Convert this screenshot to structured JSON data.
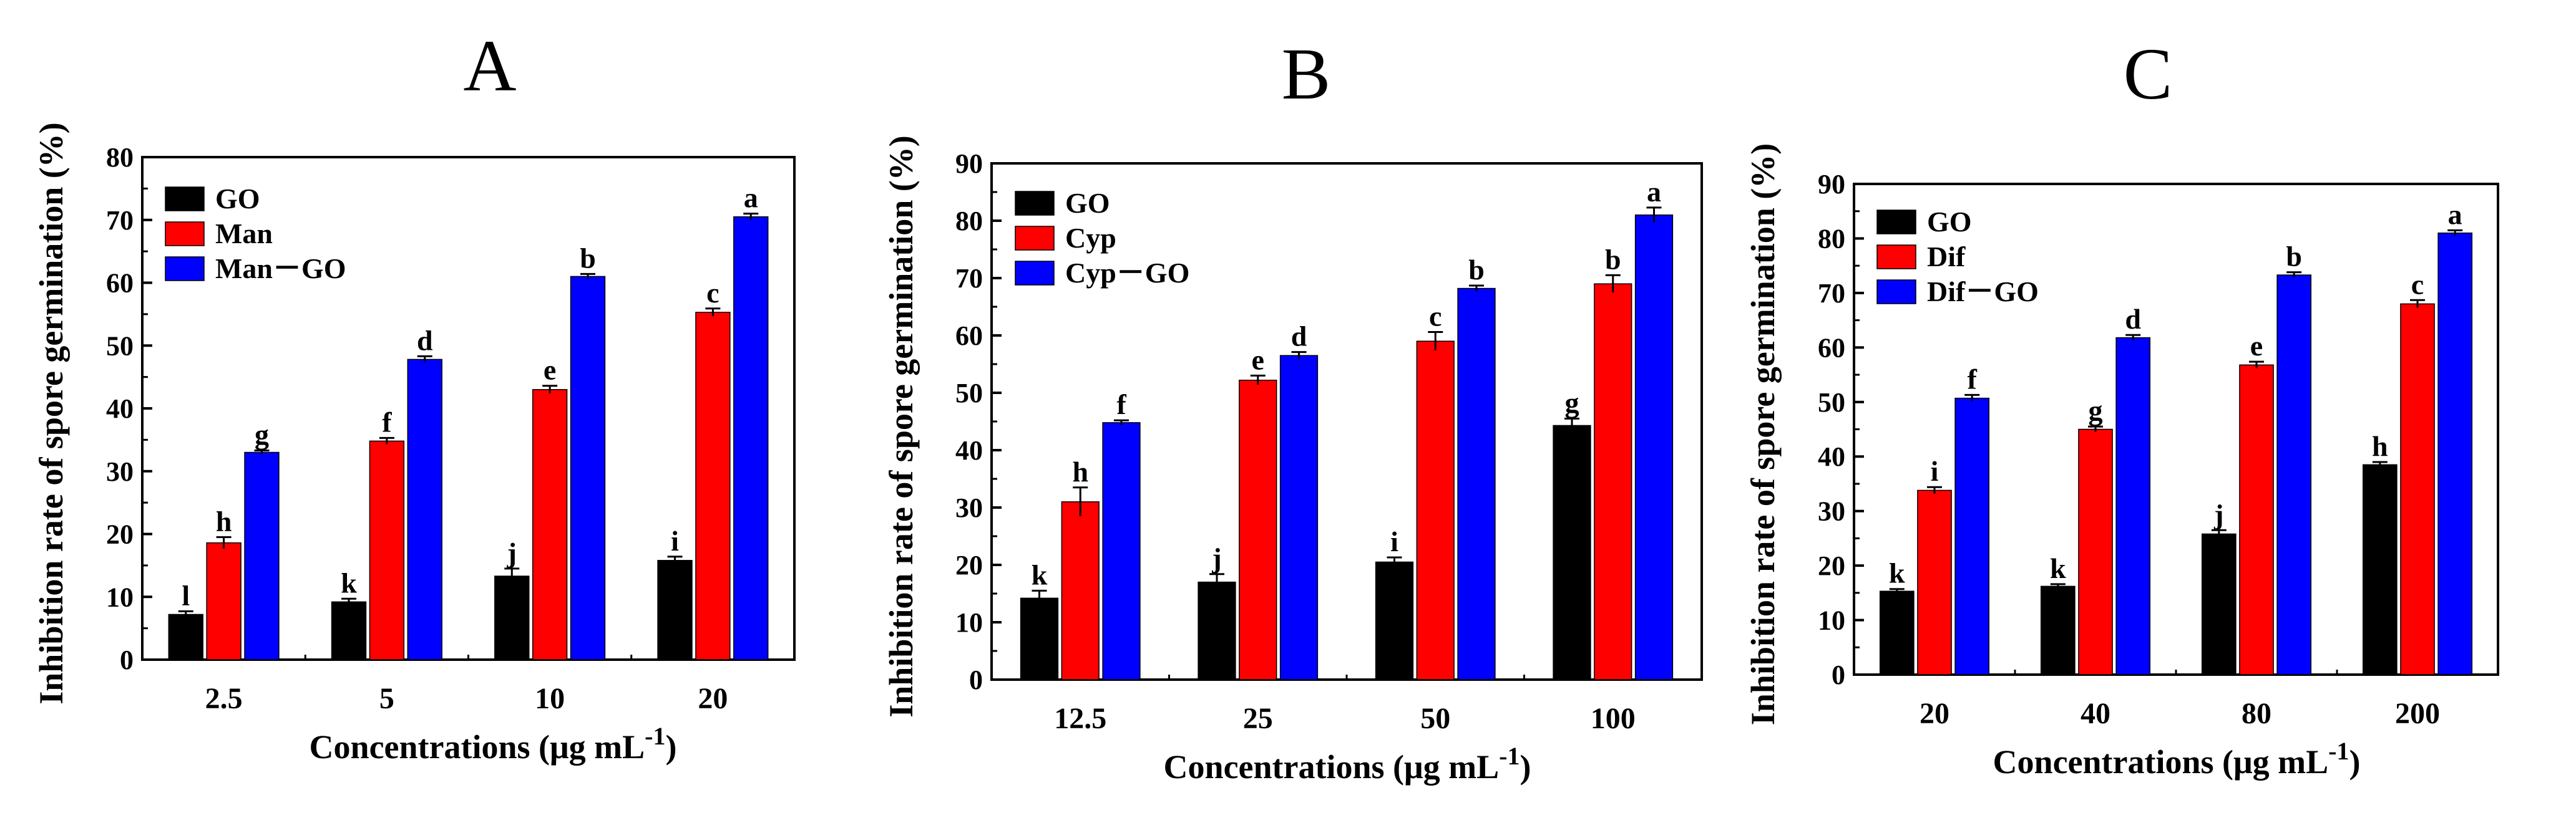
{
  "chart_data": [
    {
      "type": "bar",
      "panel": "A",
      "categories": [
        "2.5",
        "5",
        "10",
        "20"
      ],
      "series": [
        {
          "name": "GO",
          "color": "#000000",
          "values": [
            7.2,
            9.2,
            13.3,
            15.8
          ],
          "errors": [
            0.5,
            0.5,
            1.2,
            0.6
          ],
          "letters": [
            "l",
            "k",
            "j",
            "i"
          ]
        },
        {
          "name": "Man",
          "color": "#ff0000",
          "values": [
            18.6,
            34.8,
            43.0,
            55.3
          ],
          "errors": [
            0.9,
            0.5,
            0.6,
            0.6
          ],
          "letters": [
            "h",
            "f",
            "e",
            "c"
          ]
        },
        {
          "name": "Man－GO",
          "color": "#0000ff",
          "values": [
            33.0,
            47.8,
            61.0,
            70.5
          ],
          "errors": [
            0.3,
            0.5,
            0.4,
            0.5
          ],
          "letters": [
            "g",
            "d",
            "b",
            "a"
          ]
        }
      ],
      "title": "A",
      "xlabel": "Concentrations (μg mL",
      "xlabel_sup": "-1",
      "xlabel_end": ")",
      "ylabel": "Inhibition rate of spore germination (%)",
      "ylim": [
        0,
        80
      ],
      "yticks": [
        "0",
        "10",
        "20",
        "30",
        "40",
        "50",
        "60",
        "70",
        "80"
      ],
      "legend_position": "top-left"
    },
    {
      "type": "bar",
      "panel": "B",
      "categories": [
        "12.5",
        "25",
        "50",
        "100"
      ],
      "series": [
        {
          "name": "GO",
          "color": "#000000",
          "values": [
            14.2,
            17.0,
            20.5,
            44.3
          ],
          "errors": [
            1.3,
            1.4,
            0.8,
            1.2
          ],
          "letters": [
            "k",
            "j",
            "i",
            "g"
          ]
        },
        {
          "name": "Cyp",
          "color": "#ff0000",
          "values": [
            31.0,
            52.2,
            59.0,
            69.0
          ],
          "errors": [
            2.5,
            0.8,
            1.6,
            1.5
          ],
          "letters": [
            "h",
            "e",
            "c",
            "b"
          ]
        },
        {
          "name": "Cyp－GO",
          "color": "#0000ff",
          "values": [
            44.8,
            56.5,
            68.2,
            81.0
          ],
          "errors": [
            0.4,
            0.6,
            0.5,
            1.3
          ],
          "letters": [
            "f",
            "d",
            "b",
            "a"
          ]
        }
      ],
      "title": "B",
      "xlabel": "Concentrations (μg mL",
      "xlabel_sup": "-1",
      "xlabel_end": ")",
      "ylabel": "Inhibition rate of spore germination (%)",
      "ylim": [
        0,
        90
      ],
      "yticks": [
        "0",
        "10",
        "20",
        "30",
        "40",
        "50",
        "60",
        "70",
        "80",
        "90"
      ],
      "legend_position": "top-left"
    },
    {
      "type": "bar",
      "panel": "C",
      "categories": [
        "20",
        "40",
        "80",
        "200"
      ],
      "series": [
        {
          "name": "GO",
          "color": "#000000",
          "values": [
            15.3,
            16.2,
            25.8,
            38.5
          ],
          "errors": [
            0.4,
            0.4,
            0.7,
            0.5
          ],
          "letters": [
            "k",
            "k",
            "j",
            "h"
          ]
        },
        {
          "name": "Dif",
          "color": "#ff0000",
          "values": [
            33.8,
            45.0,
            56.8,
            68.0
          ],
          "errors": [
            0.6,
            0.5,
            0.6,
            0.7
          ],
          "letters": [
            "i",
            "g",
            "e",
            "c"
          ]
        },
        {
          "name": "Dif－GO",
          "color": "#0000ff",
          "values": [
            50.7,
            61.8,
            73.3,
            81.0
          ],
          "errors": [
            0.6,
            0.5,
            0.5,
            0.5
          ],
          "letters": [
            "f",
            "d",
            "b",
            "a"
          ]
        }
      ],
      "title": "C",
      "xlabel": "Concentrations (μg mL",
      "xlabel_sup": "-1",
      "xlabel_end": ")",
      "ylabel": "Inhibition rate of spore germination (%)",
      "ylim": [
        0,
        90
      ],
      "yticks": [
        "0",
        "10",
        "20",
        "30",
        "40",
        "50",
        "60",
        "70",
        "80",
        "90"
      ],
      "legend_position": "top-left"
    }
  ]
}
